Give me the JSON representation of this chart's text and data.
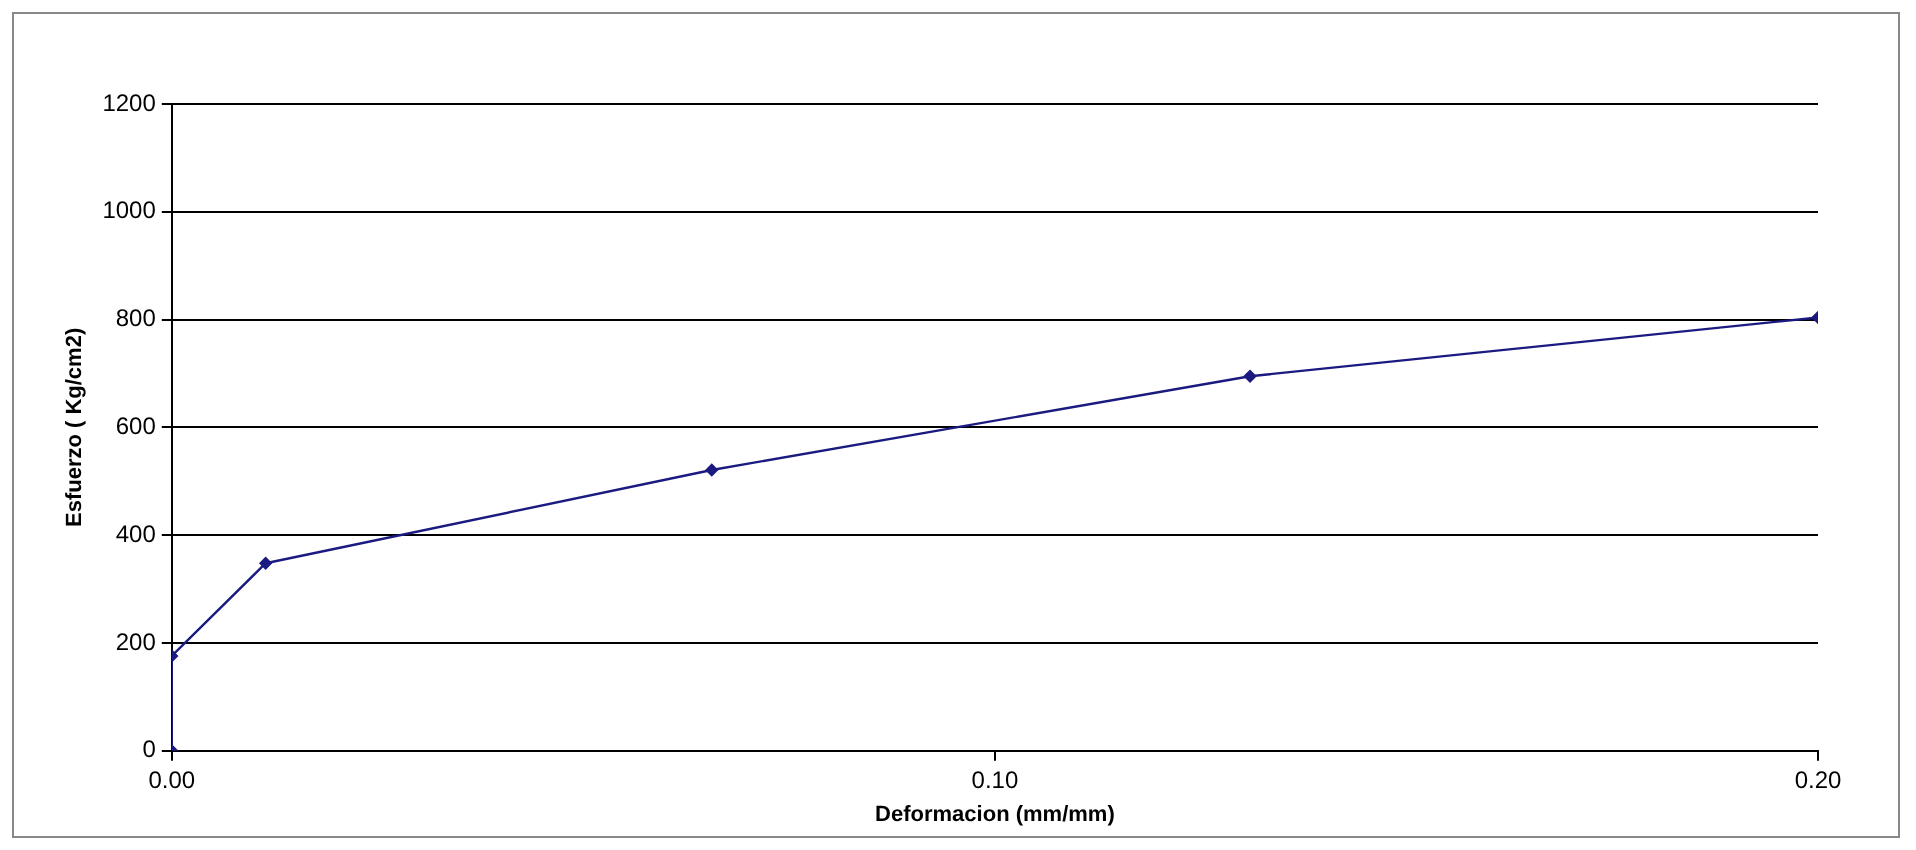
{
  "chart_data": {
    "type": "line",
    "xlabel": "Deformacion (mm/mm)",
    "ylabel": "Esfuerzo ( Kg/cm2)",
    "x": [
      0,
      0,
      0.0114,
      0.0656,
      0.131,
      0.2
    ],
    "series": [
      {
        "color": "#1a1a80",
        "values": [
          0,
          176,
          348,
          521,
          695,
          804
        ]
      }
    ],
    "xlim": [
      0,
      0.2
    ],
    "xticks": [
      {
        "value": 0,
        "label": "0.00"
      },
      {
        "value": 0.1,
        "label": "0.10"
      },
      {
        "value": 0.2,
        "label": "0.20"
      }
    ],
    "ylim": [
      0,
      1200
    ],
    "yticks": [
      0,
      200,
      400,
      600,
      800,
      1000,
      1200
    ],
    "grid": "y",
    "legend": false,
    "marker": "diamond",
    "line_style": "solid"
  }
}
